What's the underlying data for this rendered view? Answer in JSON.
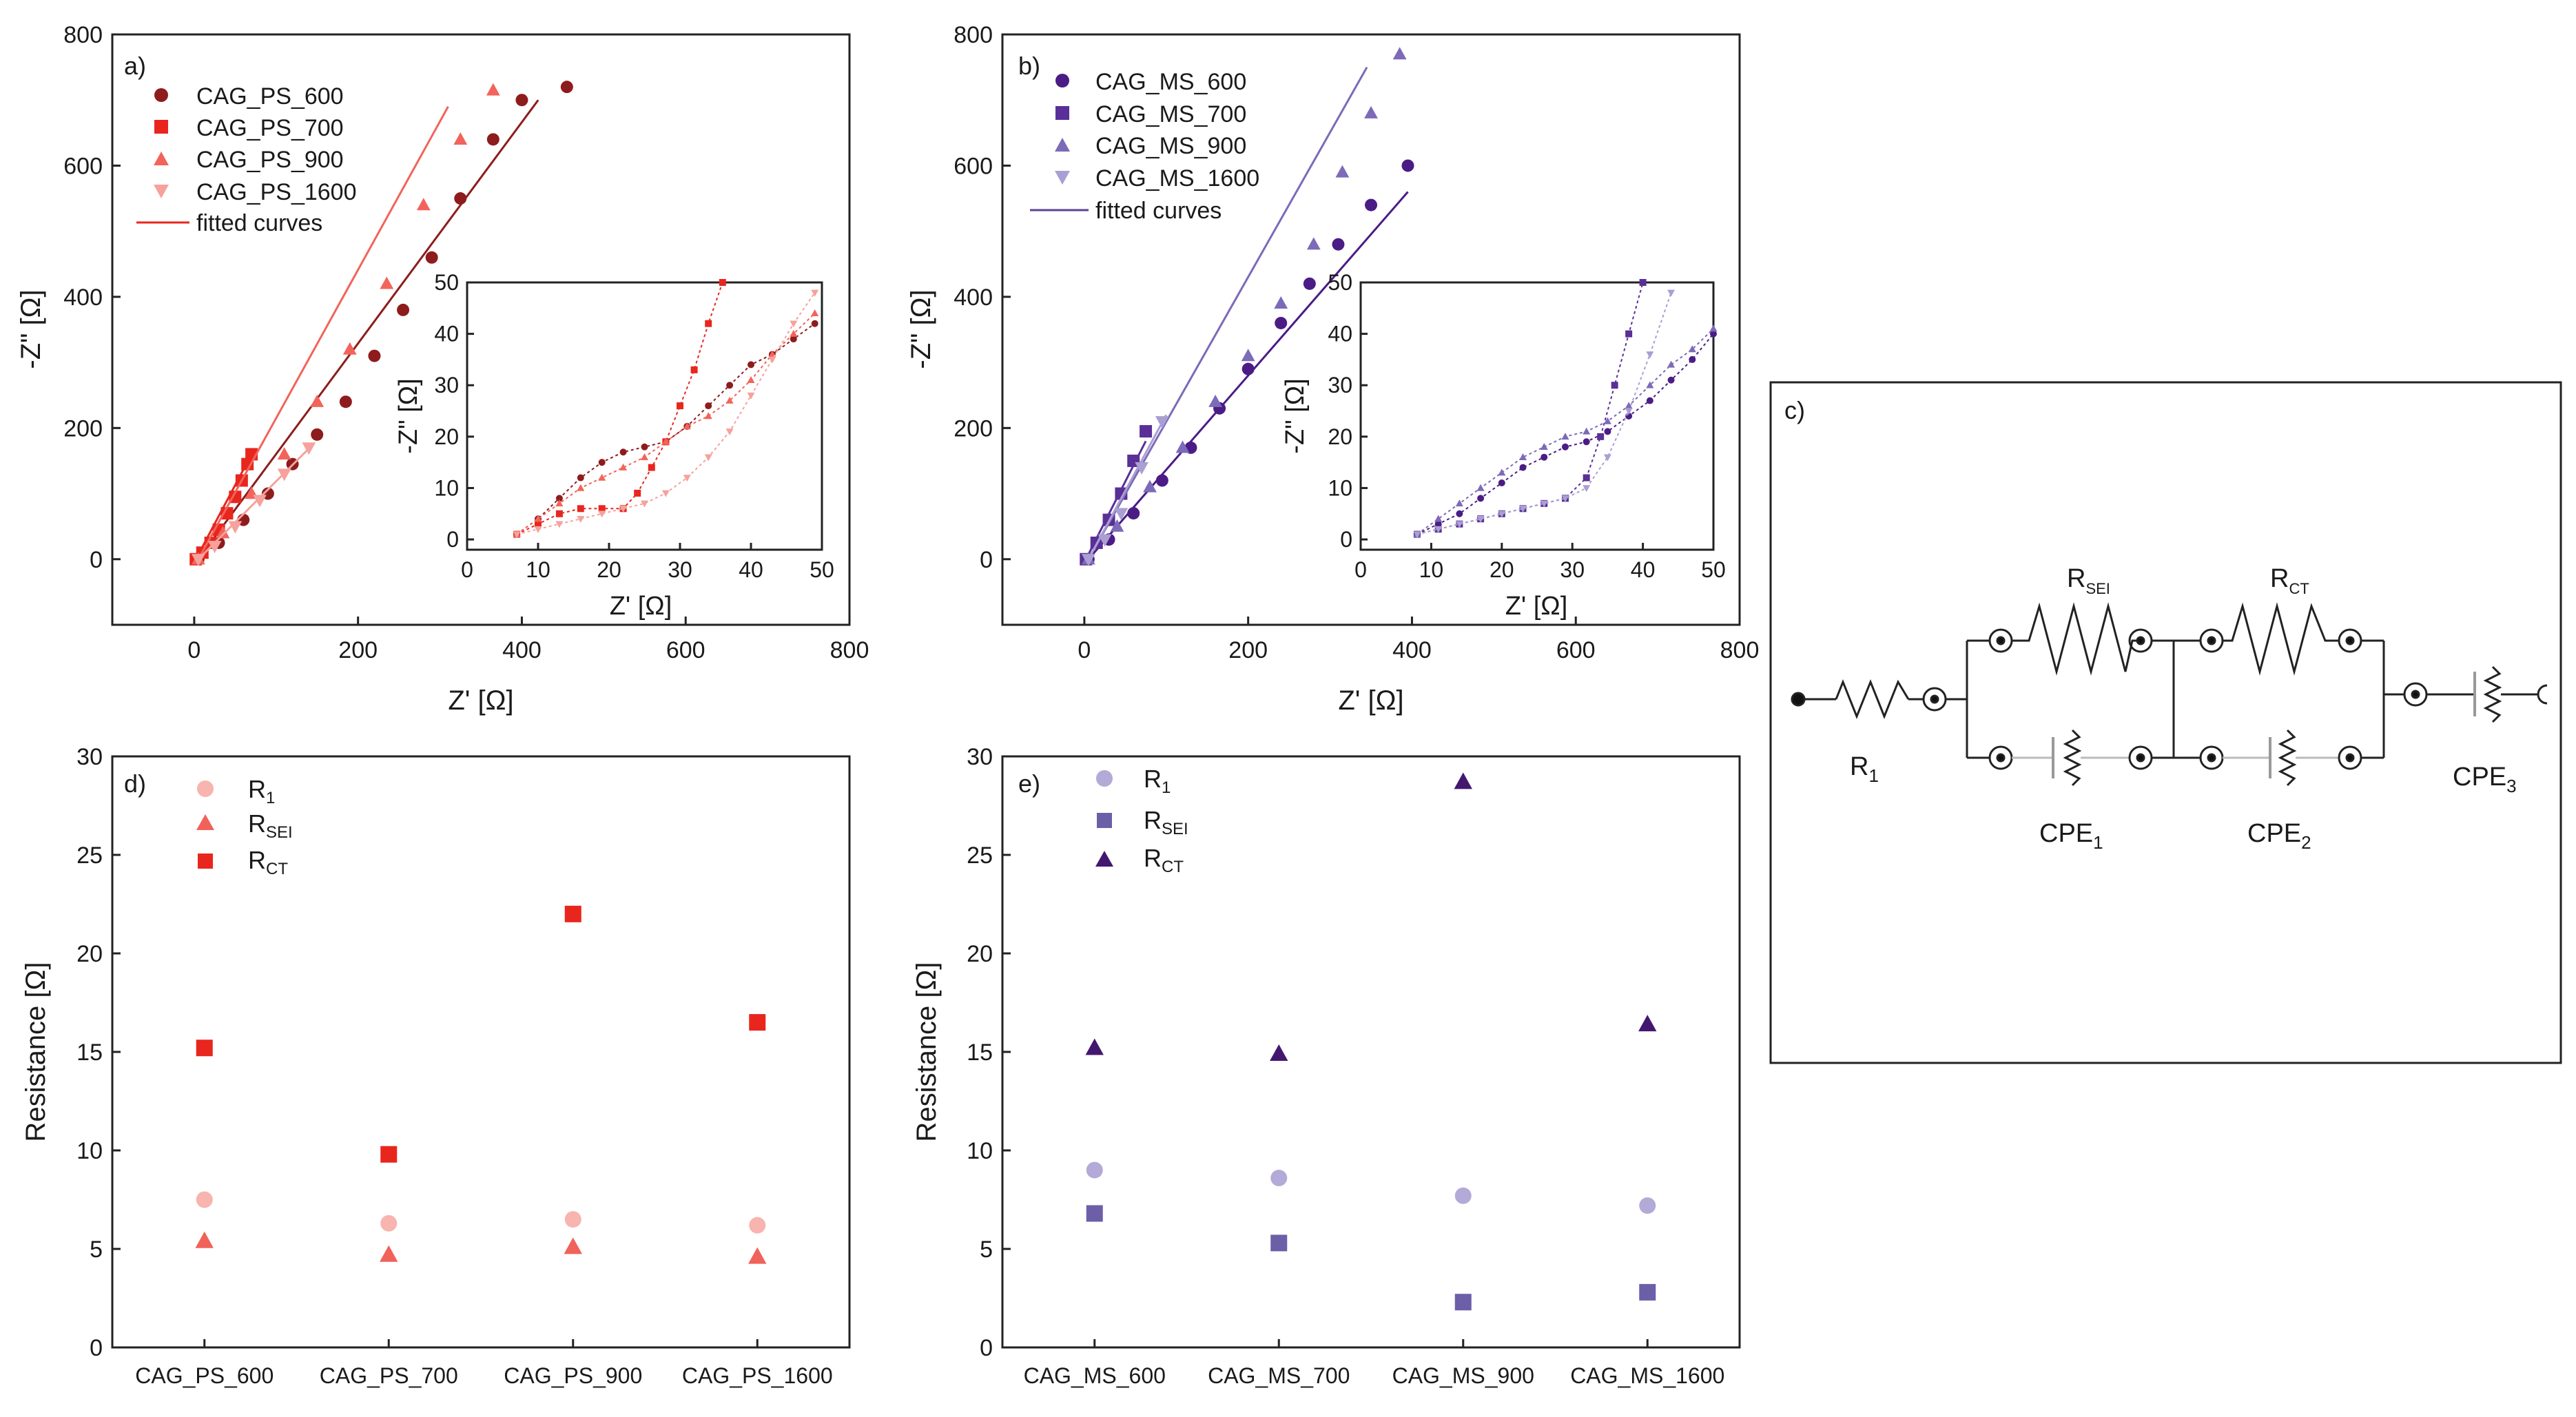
{
  "colors": {
    "ps600": "#8e1c1c",
    "ps700": "#e8261e",
    "ps900": "#f2645b",
    "ps1600": "#f6a29c",
    "psFit": "#e8261e",
    "ms600": "#4b1c86",
    "ms700": "#5a2f97",
    "ms900": "#7d6ab8",
    "ms1600": "#a99fd2",
    "msFit": "#5a4396",
    "r1_ps": "#f8b4ae",
    "rsei_ps": "#f0625a",
    "rct_ps": "#e8261e",
    "r1_ms": "#b3aad8",
    "rsei_ms": "#6c5fa8",
    "rct_ms": "#44176f"
  },
  "chart_data": [
    {
      "id": "a",
      "panel_label": "a)",
      "type": "scatter",
      "xlabel": "Z' [Ω]",
      "ylabel": "-Z\" [Ω]",
      "xlim": [
        -100,
        800
      ],
      "ylim": [
        -100,
        800
      ],
      "xticks": [
        "0",
        "200",
        "400",
        "600",
        "800"
      ],
      "yticks": [
        "0",
        "200",
        "400",
        "600",
        "800"
      ],
      "legend": [
        "CAG_PS_600",
        "CAG_PS_700",
        "CAG_PS_900",
        "CAG_PS_1600",
        "fitted curves"
      ],
      "legend_position": "top-left",
      "series": [
        {
          "name": "CAG_PS_600",
          "marker": "circle",
          "x": [
            5,
            30,
            60,
            90,
            120,
            150,
            185,
            220,
            255,
            290,
            325,
            365,
            400,
            455
          ],
          "y": [
            0,
            25,
            60,
            100,
            145,
            190,
            240,
            310,
            380,
            460,
            550,
            640,
            700,
            720
          ],
          "fit_x": [
            5,
            420
          ],
          "fit_y": [
            0,
            700
          ]
        },
        {
          "name": "CAG_PS_700",
          "marker": "square",
          "x": [
            2,
            10,
            20,
            30,
            40,
            50,
            58,
            65,
            70
          ],
          "y": [
            0,
            10,
            25,
            45,
            70,
            95,
            120,
            145,
            160
          ],
          "fit_x": [
            2,
            70
          ],
          "fit_y": [
            0,
            160
          ]
        },
        {
          "name": "CAG_PS_900",
          "marker": "triangle-up",
          "x": [
            5,
            35,
            70,
            110,
            150,
            190,
            235,
            280,
            325,
            365
          ],
          "y": [
            0,
            40,
            100,
            160,
            240,
            320,
            420,
            540,
            640,
            715
          ],
          "fit_x": [
            5,
            310
          ],
          "fit_y": [
            0,
            690
          ]
        },
        {
          "name": "CAG_PS_1600",
          "marker": "triangle-down",
          "x": [
            5,
            25,
            50,
            80,
            110,
            140
          ],
          "y": [
            0,
            20,
            50,
            90,
            130,
            170
          ],
          "fit_x": [
            5,
            145
          ],
          "fit_y": [
            0,
            175
          ]
        }
      ],
      "inset": {
        "xlim": [
          0,
          50
        ],
        "ylim": [
          -2,
          50
        ],
        "xticks": [
          "0",
          "10",
          "20",
          "30",
          "40",
          "50"
        ],
        "yticks": [
          "0",
          "10",
          "20",
          "30",
          "40",
          "50"
        ],
        "xlabel": "Z' [Ω]",
        "ylabel": "-Z\" [Ω]",
        "series": [
          {
            "name": "CAG_PS_600",
            "x": [
              7,
              10,
              13,
              16,
              19,
              22,
              25,
              28,
              31,
              34,
              37,
              40,
              43,
              46,
              49
            ],
            "y": [
              1,
              4,
              8,
              12,
              15,
              17,
              18,
              19,
              22,
              26,
              30,
              34,
              36,
              39,
              42
            ]
          },
          {
            "name": "CAG_PS_700",
            "x": [
              7,
              10,
              13,
              16,
              19,
              22,
              24,
              26,
              28,
              30,
              32,
              34,
              36
            ],
            "y": [
              1,
              3,
              5,
              6,
              6,
              6,
              9,
              14,
              19,
              26,
              33,
              42,
              50
            ]
          },
          {
            "name": "CAG_PS_900",
            "x": [
              7,
              10,
              13,
              16,
              19,
              22,
              25,
              28,
              31,
              34,
              37,
              40,
              43,
              46,
              49
            ],
            "y": [
              1,
              4,
              7,
              10,
              12,
              14,
              16,
              19,
              22,
              24,
              27,
              31,
              36,
              40,
              44
            ]
          },
          {
            "name": "CAG_PS_1600",
            "x": [
              7,
              10,
              13,
              16,
              19,
              22,
              25,
              28,
              31,
              34,
              37,
              40,
              43,
              46,
              49
            ],
            "y": [
              1,
              2,
              3,
              4,
              5,
              6,
              7,
              9,
              12,
              16,
              21,
              28,
              35,
              42,
              48
            ]
          }
        ]
      }
    },
    {
      "id": "b",
      "panel_label": "b)",
      "type": "scatter",
      "xlabel": "Z' [Ω]",
      "ylabel": "-Z\" [Ω]",
      "xlim": [
        -100,
        800
      ],
      "ylim": [
        -100,
        800
      ],
      "xticks": [
        "0",
        "200",
        "400",
        "600",
        "800"
      ],
      "yticks": [
        "0",
        "200",
        "400",
        "600",
        "800"
      ],
      "legend": [
        "CAG_MS_600",
        "CAG_MS_700",
        "CAG_MS_900",
        "CAG_MS_1600",
        "fitted curves"
      ],
      "legend_position": "top-left",
      "series": [
        {
          "name": "CAG_MS_600",
          "marker": "circle",
          "x": [
            5,
            30,
            60,
            95,
            130,
            165,
            200,
            240,
            275,
            310,
            350,
            395
          ],
          "y": [
            0,
            30,
            70,
            120,
            170,
            230,
            290,
            360,
            420,
            480,
            540,
            600
          ],
          "fit_x": [
            5,
            395
          ],
          "fit_y": [
            0,
            560
          ]
        },
        {
          "name": "CAG_MS_700",
          "marker": "square",
          "x": [
            2,
            15,
            30,
            45,
            60,
            75
          ],
          "y": [
            0,
            25,
            60,
            100,
            150,
            195
          ],
          "fit_x": [
            2,
            75
          ],
          "fit_y": [
            0,
            180
          ]
        },
        {
          "name": "CAG_MS_900",
          "marker": "triangle-up",
          "x": [
            5,
            40,
            80,
            120,
            160,
            200,
            240,
            280,
            315,
            350,
            385
          ],
          "y": [
            0,
            50,
            110,
            170,
            240,
            310,
            390,
            480,
            590,
            680,
            770
          ],
          "fit_x": [
            5,
            345
          ],
          "fit_y": [
            0,
            750
          ]
        },
        {
          "name": "CAG_MS_1600",
          "marker": "triangle-down",
          "x": [
            5,
            25,
            45,
            70,
            95
          ],
          "y": [
            0,
            30,
            70,
            140,
            210
          ],
          "fit_x": [
            5,
            100
          ],
          "fit_y": [
            0,
            220
          ]
        }
      ],
      "inset": {
        "xlim": [
          0,
          50
        ],
        "ylim": [
          -2,
          50
        ],
        "xticks": [
          "0",
          "10",
          "20",
          "30",
          "40",
          "50"
        ],
        "yticks": [
          "0",
          "10",
          "20",
          "30",
          "40",
          "50"
        ],
        "xlabel": "Z' [Ω]",
        "ylabel": "-Z\" [Ω]",
        "series": [
          {
            "name": "CAG_MS_600",
            "x": [
              8,
              11,
              14,
              17,
              20,
              23,
              26,
              29,
              32,
              35,
              38,
              41,
              44,
              47,
              50
            ],
            "y": [
              1,
              3,
              5,
              8,
              11,
              14,
              16,
              18,
              19,
              21,
              24,
              27,
              31,
              35,
              40
            ]
          },
          {
            "name": "CAG_MS_700",
            "x": [
              8,
              11,
              14,
              17,
              20,
              23,
              26,
              29,
              32,
              34,
              36,
              38,
              40
            ],
            "y": [
              1,
              2,
              3,
              4,
              5,
              6,
              7,
              8,
              12,
              20,
              30,
              40,
              50
            ]
          },
          {
            "name": "CAG_MS_900",
            "x": [
              8,
              11,
              14,
              17,
              20,
              23,
              26,
              29,
              32,
              35,
              38,
              41,
              44,
              47,
              50
            ],
            "y": [
              1,
              4,
              7,
              10,
              13,
              16,
              18,
              20,
              21,
              23,
              26,
              30,
              34,
              37,
              41
            ]
          },
          {
            "name": "CAG_MS_1600",
            "x": [
              8,
              11,
              14,
              17,
              20,
              23,
              26,
              29,
              32,
              35,
              38,
              41,
              44
            ],
            "y": [
              1,
              2,
              3,
              4,
              5,
              6,
              7,
              8,
              10,
              16,
              25,
              36,
              48
            ]
          }
        ]
      }
    },
    {
      "id": "d",
      "panel_label": "d)",
      "type": "scatter",
      "xlabel": "",
      "ylabel": "Resistance [Ω]",
      "ylim": [
        0,
        30
      ],
      "yticks": [
        "0",
        "5",
        "10",
        "15",
        "20",
        "25",
        "30"
      ],
      "categories": [
        "CAG_PS_600",
        "CAG_PS_700",
        "CAG_PS_900",
        "CAG_PS_1600"
      ],
      "legend_position": "top-left",
      "series": [
        {
          "name": "R1",
          "label_main": "R",
          "label_sub": "1",
          "marker": "circle",
          "values": [
            7.5,
            6.3,
            6.5,
            6.2
          ]
        },
        {
          "name": "RSEI",
          "label_main": "R",
          "label_sub": "SEI",
          "marker": "triangle-up",
          "values": [
            5.4,
            4.7,
            5.1,
            4.6
          ]
        },
        {
          "name": "RCT",
          "label_main": "R",
          "label_sub": "CT",
          "marker": "square",
          "values": [
            15.2,
            9.8,
            22.0,
            16.5
          ]
        }
      ]
    },
    {
      "id": "e",
      "panel_label": "e)",
      "type": "scatter",
      "xlabel": "",
      "ylabel": "Resistance [Ω]",
      "ylim": [
        0,
        30
      ],
      "yticks": [
        "0",
        "5",
        "10",
        "15",
        "20",
        "25",
        "30"
      ],
      "categories": [
        "CAG_MS_600",
        "CAG_MS_700",
        "CAG_MS_900",
        "CAG_MS_1600"
      ],
      "legend_position": "top-left",
      "series": [
        {
          "name": "R1",
          "label_main": "R",
          "label_sub": "1",
          "marker": "circle",
          "values": [
            9.0,
            8.6,
            7.7,
            7.2
          ]
        },
        {
          "name": "RSEI",
          "label_main": "R",
          "label_sub": "SEI",
          "marker": "square",
          "values": [
            6.8,
            5.3,
            2.3,
            2.8
          ]
        },
        {
          "name": "RCT",
          "label_main": "R",
          "label_sub": "CT",
          "marker": "triangle-up",
          "values": [
            15.2,
            14.9,
            28.7,
            16.4
          ]
        }
      ]
    }
  ],
  "circuit": {
    "panel_label": "c)",
    "r1": {
      "main": "R",
      "sub": "1"
    },
    "rsei": {
      "main": "R",
      "sub": "SEI"
    },
    "rct": {
      "main": "R",
      "sub": "CT"
    },
    "cpe1": {
      "main": "CPE",
      "sub": "1"
    },
    "cpe2": {
      "main": "CPE",
      "sub": "2"
    },
    "cpe3": {
      "main": "CPE",
      "sub": "3"
    }
  }
}
